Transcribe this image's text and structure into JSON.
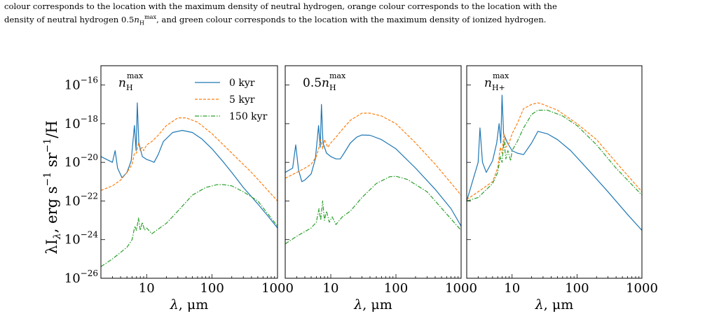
{
  "caption": {
    "line1": "colour corresponds to the location with the maximum density of neutral hydrogen, orange colour corresponds to the location with the",
    "line2_pre": "density of neutral hydrogen 0.5",
    "line2_post": ", and green colour corresponds to the location with the maximum density of ionized hydrogen.",
    "math_n": "n",
    "math_sub": "H",
    "math_sup": "max"
  },
  "colors": {
    "s0": "#1f77b4",
    "s5": "#ff7f0e",
    "s150": "#2ca02c"
  },
  "axis_labels": {
    "ylabel_main": "λI",
    "ylabel_sub": "λ",
    "ylabel_rest": ", erg s",
    "ylabel_sup1": "−1",
    "ylabel_sr": " sr",
    "ylabel_sup2": "−1",
    "ylabel_end": "/H",
    "xlabel_lambda": "λ",
    "xlabel_unit": ", μm"
  },
  "ytick_labels": [
    {
      "base": "10",
      "exp": "−16"
    },
    {
      "base": "10",
      "exp": "−18"
    },
    {
      "base": "10",
      "exp": "−20"
    },
    {
      "base": "10",
      "exp": "−22"
    },
    {
      "base": "10",
      "exp": "−24"
    },
    {
      "base": "10",
      "exp": "−26"
    }
  ],
  "xtick_labels": [
    "10",
    "100",
    "1000"
  ],
  "panel_labels": [
    {
      "prefix": "",
      "n": "n",
      "sub": "H",
      "sup": "max"
    },
    {
      "prefix": "0.5",
      "n": "n",
      "sub": "H",
      "sup": "max"
    },
    {
      "prefix": "",
      "n": "n",
      "sub": "H+",
      "sup": "max"
    }
  ],
  "legend": [
    "0 kyr",
    "5 kyr",
    "150 kyr"
  ],
  "chart_data": {
    "type": "line",
    "xscale": "log",
    "yscale": "log",
    "xlim": [
      2,
      1000
    ],
    "ylim": [
      1e-26,
      1e-15
    ],
    "legend_placement": "top-right of first panel",
    "grid": false,
    "panels": [
      {
        "series": [
          {
            "name": "0 kyr",
            "x": [
              2,
              3,
              3.3,
              3.6,
              4.2,
              5,
              5.8,
              6.5,
              6.9,
              7.2,
              7.6,
              8.6,
              10,
              11.5,
              13,
              15,
              18,
              25,
              35,
              50,
              70,
              100,
              150,
              200,
              300,
              500,
              700,
              1000
            ],
            "y": [
              2e-20,
              1e-20,
              4e-20,
              5e-21,
              1.6e-21,
              3e-21,
              1.2e-20,
              8e-19,
              4e-20,
              1.2e-17,
              1e-19,
              2e-20,
              1.4e-20,
              1.2e-20,
              1e-20,
              2.5e-20,
              1.2e-19,
              3.5e-19,
              4.5e-19,
              3.5e-19,
              1.6e-19,
              5e-20,
              1e-20,
              3e-21,
              5e-22,
              7e-23,
              1.8e-23,
              4e-24
            ]
          },
          {
            "name": "5 kyr",
            "x": [
              2,
              3,
              4,
              5,
              6,
              6.5,
              7,
              7.5,
              8,
              8.5,
              9,
              10,
              12,
              15,
              20,
              30,
              40,
              60,
              100,
              200,
              400,
              1000
            ],
            "y": [
              3.5e-22,
              6e-22,
              1.2e-21,
              3e-21,
              8e-21,
              3e-20,
              3e-20,
              1e-19,
              4e-20,
              6e-20,
              4e-20,
              8e-20,
              1.2e-19,
              2.5e-19,
              8e-19,
              2e-18,
              2e-18,
              1.2e-18,
              3e-19,
              3e-20,
              3e-21,
              1e-22
            ]
          },
          {
            "name": "150 kyr",
            "x": [
              2,
              3,
              5,
              6,
              6.6,
              7,
              7.5,
              8,
              8.6,
              9.3,
              10,
              12,
              15,
              20,
              30,
              50,
              80,
              120,
              150,
              200,
              300,
              500,
              1000
            ],
            "y": [
              4e-26,
              1e-25,
              4e-25,
              1e-24,
              5e-24,
              3e-24,
              1.3e-23,
              3e-24,
              8e-24,
              3e-24,
              4e-24,
              2e-24,
              3.5e-24,
              7e-24,
              3e-23,
              2e-22,
              5e-22,
              7e-22,
              7e-22,
              6e-22,
              3e-22,
              1e-22,
              5e-24
            ]
          }
        ]
      },
      {
        "series": [
          {
            "name": "0 kyr",
            "x": [
              2,
              2.6,
              2.9,
              3.2,
              3.6,
              4,
              5,
              5.8,
              6.5,
              6.9,
              7.2,
              7.6,
              8.6,
              10,
              12,
              14,
              16,
              20,
              25,
              30,
              40,
              60,
              100,
              200,
              400,
              700,
              1000
            ],
            "y": [
              3e-21,
              5e-21,
              8e-20,
              4e-21,
              1e-21,
              1.2e-21,
              2.5e-21,
              1.5e-20,
              8e-19,
              6e-20,
              1e-17,
              1e-19,
              3e-20,
              2e-20,
              1.5e-20,
              1.5e-20,
              3e-20,
              1e-19,
              2e-19,
              2.6e-19,
              2.5e-19,
              1.5e-19,
              5e-20,
              5e-21,
              4e-22,
              4e-23,
              5e-24
            ]
          },
          {
            "name": "5 kyr",
            "x": [
              2,
              3,
              4,
              5,
              6,
              6.5,
              7,
              7.5,
              8,
              9,
              10,
              12,
              15,
              20,
              30,
              40,
              60,
              100,
              200,
              400,
              1000
            ],
            "y": [
              1.5e-21,
              3e-21,
              5e-21,
              8e-21,
              2e-20,
              5e-20,
              1.5e-19,
              5e-20,
              1.5e-19,
              6e-20,
              1e-19,
              2e-19,
              5e-19,
              1.5e-18,
              3.5e-18,
              3.5e-18,
              2.5e-18,
              1e-18,
              1e-19,
              8e-21,
              2e-22
            ]
          },
          {
            "name": "150 kyr",
            "x": [
              2,
              3,
              5,
              6,
              6.6,
              7,
              7.5,
              8,
              8.6,
              9.5,
              10.5,
              12,
              15,
              20,
              30,
              50,
              80,
              100,
              150,
              300,
              1000
            ],
            "y": [
              6e-25,
              1.5e-24,
              4e-24,
              8e-24,
              4e-23,
              1e-23,
              1e-22,
              1e-23,
              3e-23,
              8e-24,
              1.5e-23,
              6e-24,
              1.5e-23,
              3e-23,
              1.5e-22,
              8e-22,
              1.8e-21,
              1.9e-21,
              1.3e-21,
              3e-22,
              3e-24
            ]
          }
        ]
      },
      {
        "series": [
          {
            "name": "0 kyr",
            "x": [
              2,
              3,
              3.2,
              3.5,
              4,
              5,
              5.8,
              6.3,
              6.7,
              7,
              7.4,
              8.5,
              10,
              12,
              15,
              20,
              25,
              35,
              50,
              80,
              150,
              300,
              600,
              1000
            ],
            "y": [
              1e-22,
              1e-20,
              6e-19,
              1e-20,
              3e-21,
              1.2e-20,
              1e-19,
              1e-18,
              1e-19,
              3e-17,
              3e-19,
              1e-19,
              4e-20,
              3e-20,
              2.5e-20,
              1e-19,
              4e-19,
              3e-19,
              1.5e-19,
              4e-20,
              4e-21,
              3e-22,
              2e-23,
              3e-24
            ]
          },
          {
            "name": "5 kyr",
            "x": [
              2,
              3,
              5,
              6,
              6.6,
              7,
              7.5,
              8,
              9,
              10,
              12,
              15,
              20,
              25,
              30,
              50,
              100,
              200,
              400,
              1000
            ],
            "y": [
              1.2e-22,
              3e-22,
              1e-21,
              5e-21,
              6e-20,
              3e-20,
              3e-19,
              6e-20,
              1e-19,
              3e-19,
              1e-18,
              6e-18,
              1e-17,
              1.2e-17,
              1e-17,
              5e-18,
              1e-18,
              1.5e-19,
              1e-20,
              3e-22
            ]
          },
          {
            "name": "150 kyr",
            "x": [
              2,
              3,
              5,
              6,
              6.6,
              7,
              7.5,
              8,
              8.6,
              9.5,
              10,
              12,
              15,
              20,
              25,
              35,
              60,
              100,
              200,
              400,
              1000
            ],
            "y": [
              1e-22,
              1.5e-22,
              8e-22,
              3e-21,
              2e-20,
              1e-20,
              1.3e-19,
              1.5e-20,
              4e-20,
              1.2e-20,
              4e-20,
              1.2e-19,
              6e-19,
              3e-18,
              5e-18,
              5e-18,
              2.5e-18,
              8e-19,
              8e-20,
              5e-21,
              2e-22
            ]
          }
        ]
      }
    ]
  }
}
